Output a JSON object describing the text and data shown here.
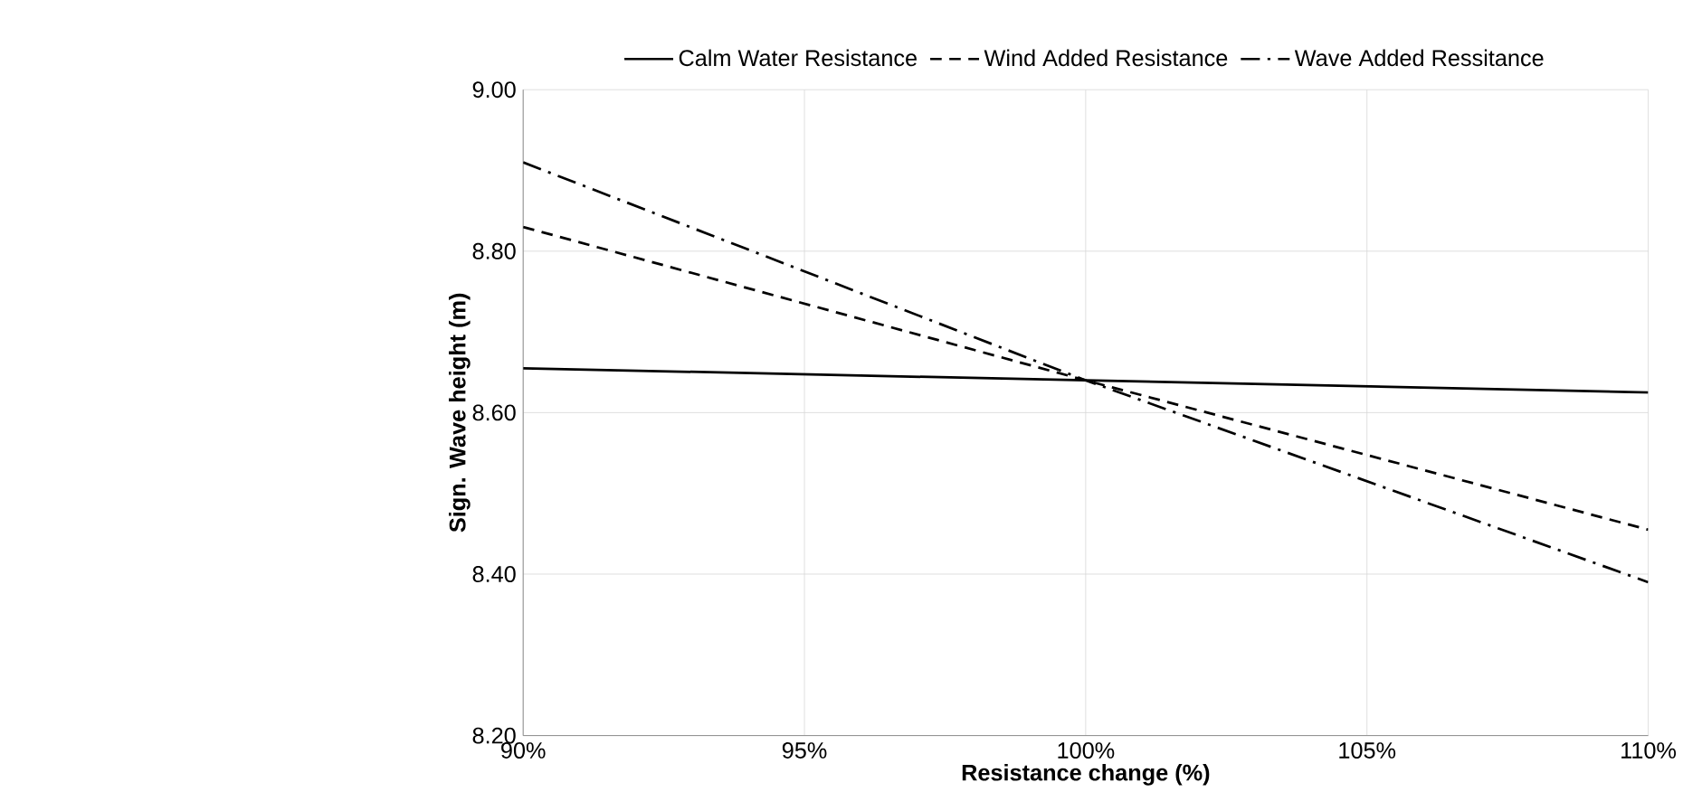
{
  "chart_data": {
    "type": "line",
    "xlabel": "Resistance change (%)",
    "ylabel": "Sign. Wave height (m)",
    "x": [
      90,
      100,
      110
    ],
    "series": [
      {
        "name": "Calm Water Resistance",
        "color": "#000000",
        "line_style": "solid",
        "values": [
          8.655,
          8.64,
          8.625
        ]
      },
      {
        "name": "Wind Added Resistance",
        "color": "#000000",
        "line_style": "dashed",
        "values": [
          8.83,
          8.64,
          8.455
        ]
      },
      {
        "name": "Wave Added Ressitance",
        "color": "#000000",
        "line_style": "dashdot",
        "values": [
          8.91,
          8.64,
          8.39
        ]
      }
    ],
    "xlim": [
      90,
      110
    ],
    "xticks": [
      {
        "value": 90,
        "label": "90%"
      },
      {
        "value": 95,
        "label": "95%"
      },
      {
        "value": 100,
        "label": "100%"
      },
      {
        "value": 105,
        "label": "105%"
      },
      {
        "value": 110,
        "label": "110%"
      }
    ],
    "ylim": [
      8.2,
      9.0
    ],
    "yticks": [
      {
        "value": 8.2,
        "label": "8.20"
      },
      {
        "value": 8.4,
        "label": "8.40"
      },
      {
        "value": 8.6,
        "label": "8.60"
      },
      {
        "value": 8.8,
        "label": "8.80"
      },
      {
        "value": 9.0,
        "label": "9.00"
      }
    ],
    "grid": true,
    "legend": "top",
    "marker": "none"
  }
}
